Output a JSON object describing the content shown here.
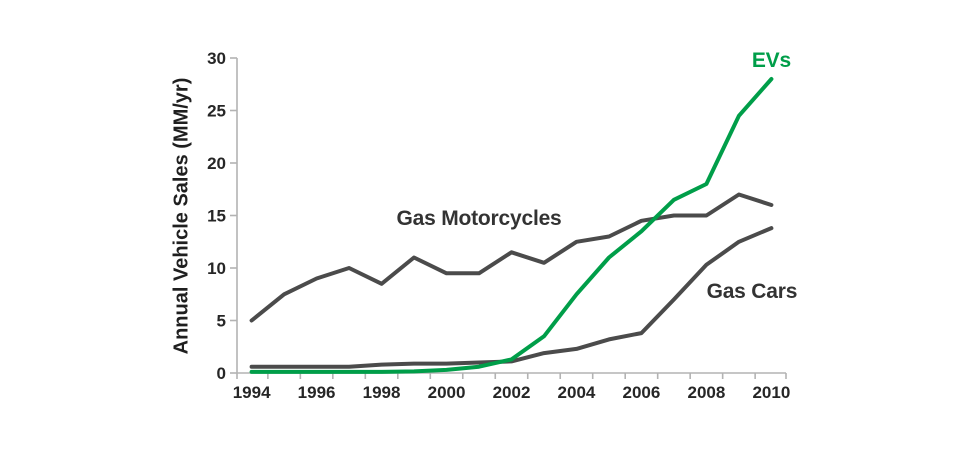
{
  "colors": {
    "background": "#ffffff",
    "axis_line": "#b3b3b3",
    "tick_mark": "#b3b3b3",
    "tick_label": "#262626",
    "dark_series": "#4b4b4b",
    "green_series": "#009e49",
    "annotation_dark": "#333333"
  },
  "chart_data": {
    "type": "line",
    "title": "",
    "xlabel": "",
    "ylabel": "Annual Vehicle Sales (MM/yr)",
    "grid": false,
    "legend_position": "inline-annotations",
    "xlim": [
      1993.55,
      2010.45
    ],
    "ylim": [
      0,
      30
    ],
    "y_ticks": [
      0,
      5,
      10,
      15,
      20,
      25,
      30
    ],
    "x_labeled_years": [
      1994,
      1996,
      1998,
      2000,
      2002,
      2004,
      2006,
      2008,
      2010
    ],
    "x": [
      1994,
      1995,
      1996,
      1997,
      1998,
      1999,
      2000,
      2001,
      2002,
      2003,
      2004,
      2005,
      2006,
      2007,
      2008,
      2009,
      2010
    ],
    "series": [
      {
        "name": "Gas Motorcycles",
        "color": "#4b4b4b",
        "values": [
          5,
          7.5,
          9,
          10,
          8.5,
          11,
          9.5,
          9.5,
          11.5,
          10.5,
          12.5,
          13,
          14.5,
          15,
          15,
          17,
          16
        ]
      },
      {
        "name": "Gas Cars",
        "color": "#4b4b4b",
        "values": [
          0.6,
          0.6,
          0.6,
          0.6,
          0.8,
          0.9,
          0.9,
          1.0,
          1.1,
          1.9,
          2.3,
          3.2,
          3.8,
          7,
          10.3,
          12.5,
          13.8
        ]
      },
      {
        "name": "EVs",
        "color": "#009e49",
        "values": [
          0.1,
          0.1,
          0.1,
          0.1,
          0.1,
          0.15,
          0.3,
          0.6,
          1.3,
          3.5,
          7.5,
          11,
          13.5,
          16.5,
          18,
          24.5,
          28
        ]
      }
    ],
    "annotations": [
      {
        "text": "Gas Motorcycles",
        "x": 2001.0,
        "y": 14.7,
        "color": "#333333"
      },
      {
        "text": "Gas Cars",
        "x": 2009.4,
        "y": 7.7,
        "color": "#333333"
      },
      {
        "text": "EVs",
        "x": 2010.0,
        "y": 29.7,
        "color": "#009e49"
      }
    ]
  }
}
